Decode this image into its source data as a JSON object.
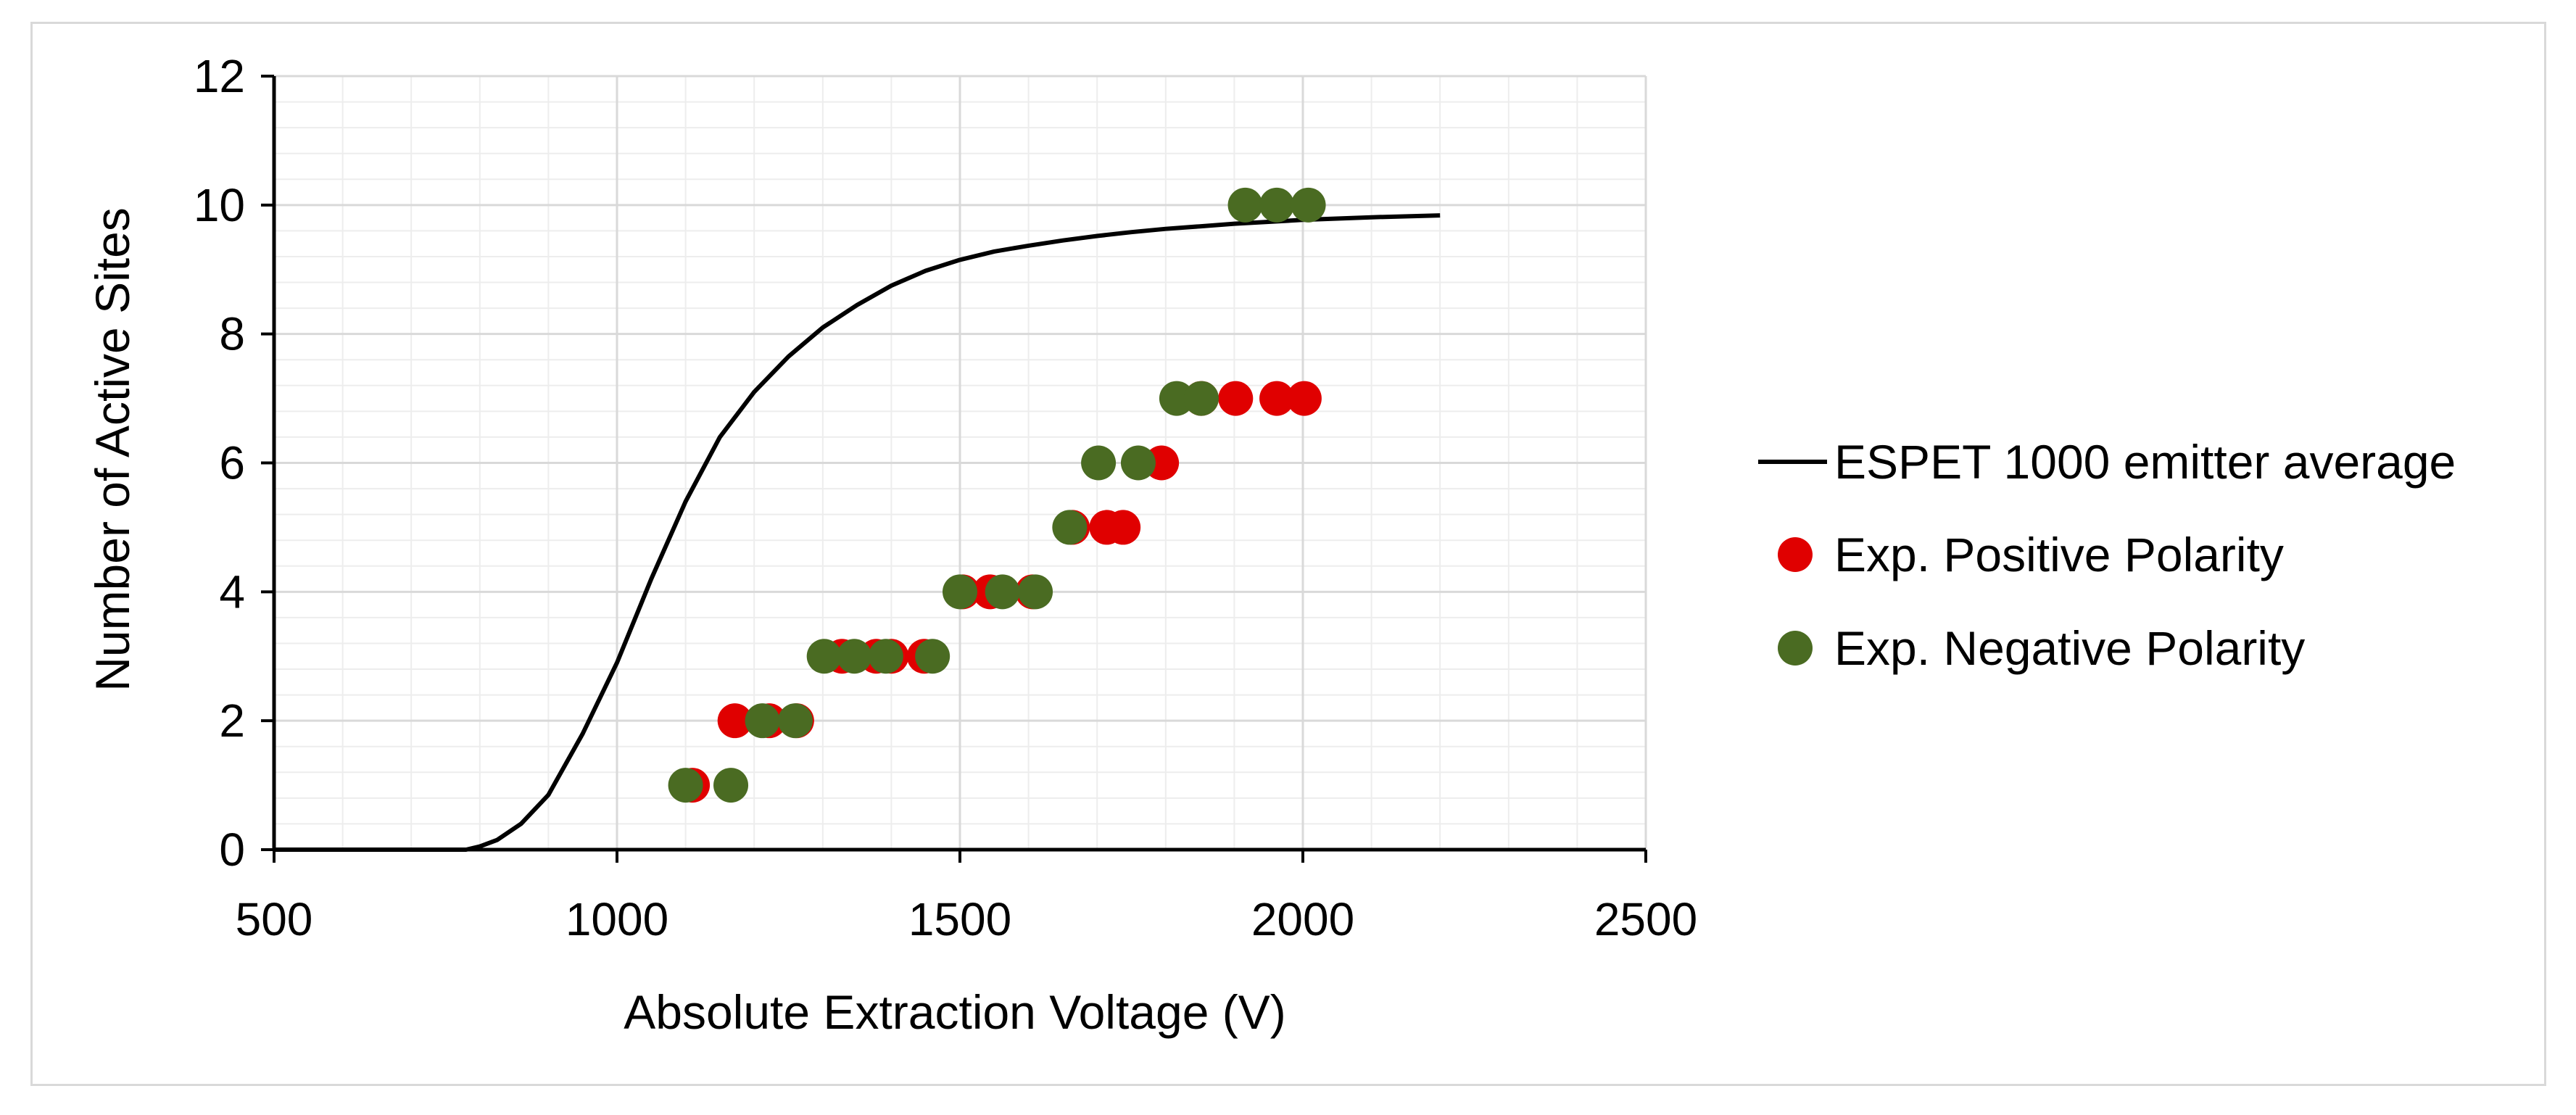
{
  "chart_data": {
    "type": "scatter",
    "xlabel": "Absolute Extraction Voltage (V)",
    "ylabel": "Number of Active Sites",
    "xlim": [
      500,
      2500
    ],
    "ylim": [
      0,
      12
    ],
    "x_ticks": [
      500,
      1000,
      1500,
      2000,
      2500
    ],
    "y_ticks": [
      0,
      2,
      4,
      6,
      8,
      10,
      12
    ],
    "x_tick_labels": [
      "500",
      "1000",
      "1500",
      "2000",
      "2500"
    ],
    "y_tick_labels": [
      "0",
      "2",
      "4",
      "6",
      "8",
      "10",
      "12"
    ],
    "grid": true,
    "legend_position": "right",
    "colors": {
      "line": "#000000",
      "positive": "#e00000",
      "negative": "#4a6b22",
      "major_grid": "#d9d9d9",
      "minor_grid": "#ededed",
      "axis": "#000000"
    },
    "series": [
      {
        "name": "ESPET 1000 emitter average",
        "kind": "line",
        "points": [
          [
            500,
            0
          ],
          [
            700,
            0
          ],
          [
            780,
            0
          ],
          [
            800,
            0.05
          ],
          [
            825,
            0.15
          ],
          [
            860,
            0.4
          ],
          [
            900,
            0.85
          ],
          [
            950,
            1.8
          ],
          [
            1000,
            2.9
          ],
          [
            1050,
            4.2
          ],
          [
            1100,
            5.4
          ],
          [
            1150,
            6.4
          ],
          [
            1200,
            7.1
          ],
          [
            1250,
            7.65
          ],
          [
            1300,
            8.1
          ],
          [
            1350,
            8.45
          ],
          [
            1400,
            8.75
          ],
          [
            1450,
            8.98
          ],
          [
            1500,
            9.15
          ],
          [
            1550,
            9.28
          ],
          [
            1600,
            9.37
          ],
          [
            1650,
            9.45
          ],
          [
            1700,
            9.52
          ],
          [
            1750,
            9.58
          ],
          [
            1800,
            9.63
          ],
          [
            1850,
            9.67
          ],
          [
            1900,
            9.71
          ],
          [
            1950,
            9.74
          ],
          [
            2000,
            9.77
          ],
          [
            2100,
            9.81
          ],
          [
            2200,
            9.84
          ]
        ]
      },
      {
        "name": "Exp. Positive Polarity",
        "kind": "scatter",
        "x": [
          1110,
          1172,
          1222,
          1262,
          1328,
          1378,
          1400,
          1448,
          1504,
          1544,
          1606,
          1664,
          1714,
          1738,
          1794,
          1852,
          1902,
          1962,
          2002
        ],
        "y": [
          1,
          2,
          2,
          2,
          3,
          3,
          3,
          3,
          4,
          4,
          4,
          5,
          5,
          5,
          6,
          7,
          7,
          7,
          7
        ]
      },
      {
        "name": "Exp. Negative Polarity",
        "kind": "scatter",
        "x": [
          1100,
          1166,
          1212,
          1260,
          1302,
          1346,
          1392,
          1460,
          1500,
          1562,
          1610,
          1660,
          1702,
          1760,
          1816,
          1852,
          1916,
          1962,
          2008
        ],
        "y": [
          1,
          1,
          2,
          2,
          3,
          3,
          3,
          3,
          4,
          4,
          4,
          5,
          6,
          6,
          7,
          7,
          10,
          10,
          10
        ]
      }
    ]
  }
}
